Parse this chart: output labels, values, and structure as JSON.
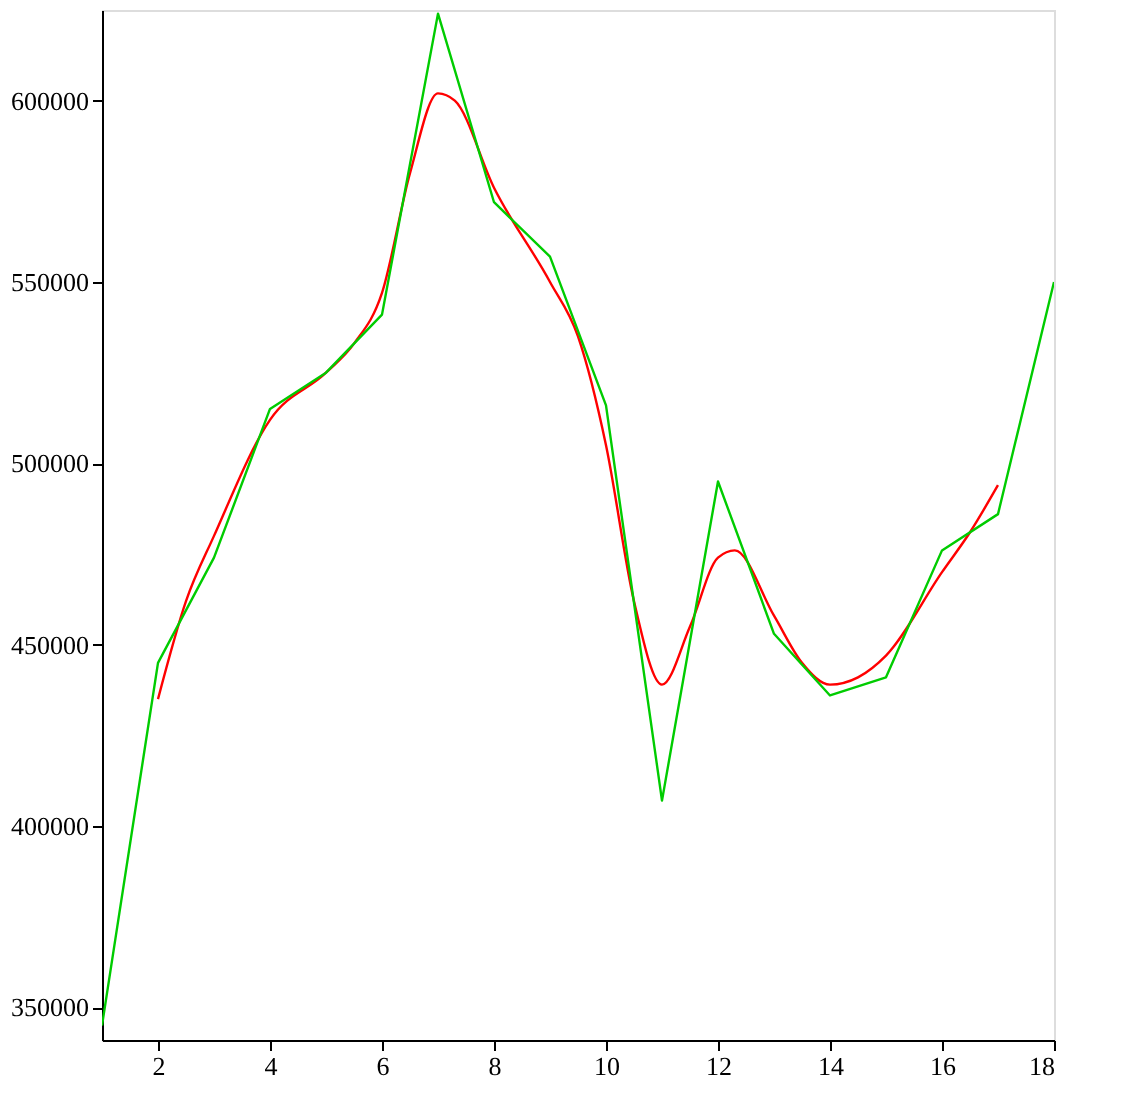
{
  "chart_data": {
    "type": "line",
    "xlim": [
      1,
      18
    ],
    "ylim": [
      341000,
      625000
    ],
    "xticks": [
      2,
      4,
      6,
      8,
      10,
      12,
      14,
      16,
      18
    ],
    "yticks": [
      350000,
      400000,
      450000,
      500000,
      550000,
      600000
    ],
    "grid": false,
    "marker": "none",
    "line_style": "solid",
    "series": [
      {
        "color": "#ff0000",
        "x": [
          2,
          2.5,
          3,
          4,
          5,
          5.5,
          6,
          6.5,
          7,
          7.3,
          8,
          9,
          9.5,
          10,
          10.5,
          11,
          11.5,
          12,
          12.3,
          13,
          13.5,
          14,
          14.5,
          15,
          16,
          16.5,
          17
        ],
        "values": [
          435000,
          462000,
          480000,
          512000,
          525000,
          533000,
          547000,
          580000,
          602000,
          600000,
          576000,
          550000,
          535000,
          505000,
          462000,
          439000,
          455000,
          474000,
          476000,
          458000,
          445000,
          439000,
          441000,
          447000,
          470000,
          481000,
          494000
        ]
      },
      {
        "color": "#00cc00",
        "x": [
          1,
          2,
          3,
          4,
          5,
          6,
          7,
          8,
          9,
          10,
          11,
          12,
          13,
          14,
          15,
          16,
          17,
          18
        ],
        "values": [
          345000,
          445000,
          474000,
          515000,
          525000,
          541000,
          624000,
          572000,
          557000,
          516000,
          407000,
          495000,
          453000,
          436000,
          441000,
          476000,
          486000,
          550000
        ]
      }
    ]
  }
}
